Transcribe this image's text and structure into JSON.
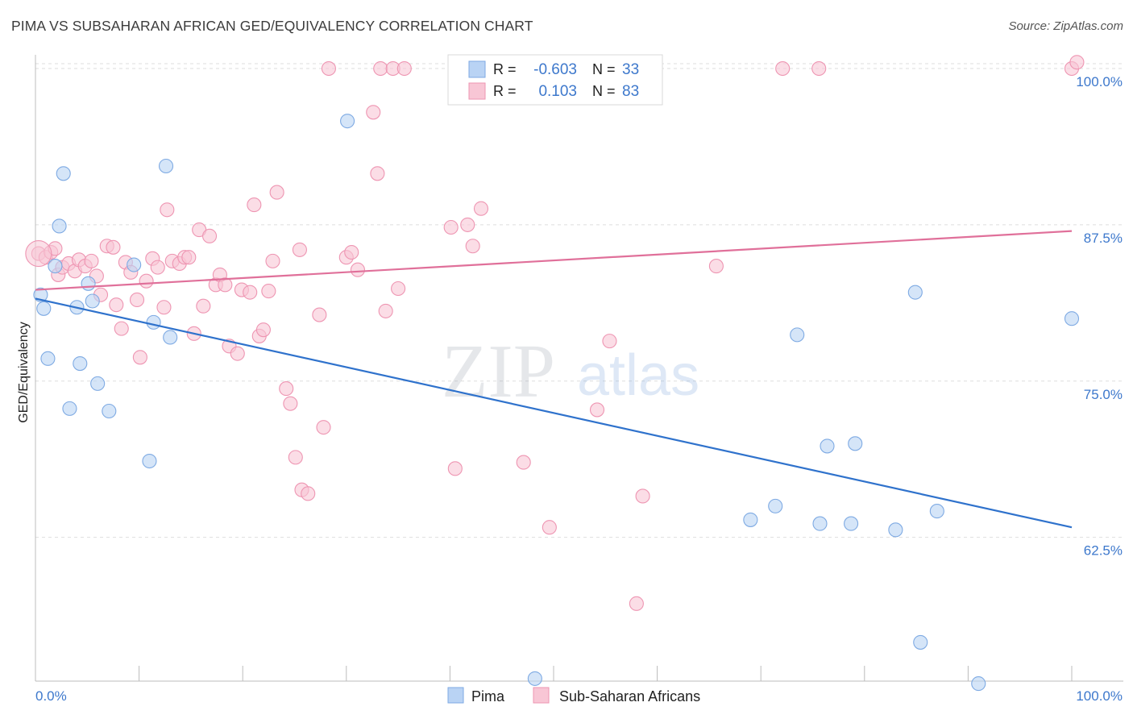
{
  "header": {
    "title": "PIMA VS SUBSAHARAN AFRICAN GED/EQUIVALENCY CORRELATION CHART",
    "source": "Source: ZipAtlas.com"
  },
  "watermark": {
    "zip": "ZIP",
    "atlas": "atlas"
  },
  "chart_data": {
    "type": "scatter",
    "ylabel": "GED/Equivalency",
    "xlim": [
      0,
      100
    ],
    "ylim": [
      51,
      102
    ],
    "x_tick_labels": [
      "0.0%",
      "100.0%"
    ],
    "y_ticks": [
      62.5,
      75.0,
      87.5,
      100.0
    ],
    "y_tick_labels": [
      "62.5%",
      "75.0%",
      "87.5%",
      "100.0%"
    ],
    "grid": "horizontal dashed",
    "legend_position": "top-center",
    "colors": {
      "pima_fill": "#b9d3f4",
      "pima_stroke": "#7eaae3",
      "pima_line": "#2f72cc",
      "ssa_fill": "#f8c6d5",
      "ssa_stroke": "#ee95b2",
      "ssa_line": "#e0709a"
    },
    "series": [
      {
        "name": "Pima",
        "r": "-0.603",
        "n": "33",
        "trend": [
          [
            0,
            81.6
          ],
          [
            100,
            63.3
          ]
        ],
        "points": [
          [
            0.5,
            81.9
          ],
          [
            0.8,
            80.8
          ],
          [
            1.2,
            76.8
          ],
          [
            1.9,
            84.2
          ],
          [
            2.3,
            87.4
          ],
          [
            2.7,
            91.6
          ],
          [
            3.3,
            72.8
          ],
          [
            4.0,
            80.9
          ],
          [
            4.3,
            76.4
          ],
          [
            5.1,
            82.8
          ],
          [
            5.5,
            81.4
          ],
          [
            6.0,
            74.8
          ],
          [
            7.1,
            72.6
          ],
          [
            9.5,
            84.3
          ],
          [
            11.0,
            68.6
          ],
          [
            11.4,
            79.7
          ],
          [
            12.6,
            92.2
          ],
          [
            13.0,
            78.5
          ],
          [
            30.1,
            95.8
          ],
          [
            48.2,
            51.2
          ],
          [
            69.0,
            63.9
          ],
          [
            71.4,
            65.0
          ],
          [
            73.5,
            78.7
          ],
          [
            75.7,
            63.6
          ],
          [
            76.4,
            69.8
          ],
          [
            78.7,
            63.6
          ],
          [
            79.1,
            70.0
          ],
          [
            83.0,
            63.1
          ],
          [
            84.9,
            82.1
          ],
          [
            85.4,
            54.1
          ],
          [
            87.0,
            64.6
          ],
          [
            91.0,
            50.8
          ],
          [
            100.0,
            80.0
          ]
        ]
      },
      {
        "name": "Sub-Saharan Africans",
        "r": "0.103",
        "n": "83",
        "trend": [
          [
            0,
            82.3
          ],
          [
            100,
            87.0
          ]
        ],
        "points": [
          [
            0.3,
            85.2
          ],
          [
            1.0,
            84.9
          ],
          [
            1.5,
            85.3
          ],
          [
            1.9,
            85.6
          ],
          [
            2.2,
            83.5
          ],
          [
            2.6,
            84.1
          ],
          [
            3.2,
            84.4
          ],
          [
            3.8,
            83.8
          ],
          [
            4.2,
            84.7
          ],
          [
            4.8,
            84.2
          ],
          [
            5.4,
            84.6
          ],
          [
            5.9,
            83.4
          ],
          [
            6.3,
            81.9
          ],
          [
            6.9,
            85.8
          ],
          [
            7.5,
            85.7
          ],
          [
            7.8,
            81.1
          ],
          [
            8.3,
            79.2
          ],
          [
            8.7,
            84.5
          ],
          [
            9.2,
            83.7
          ],
          [
            9.8,
            81.5
          ],
          [
            10.1,
            76.9
          ],
          [
            10.7,
            83.0
          ],
          [
            11.3,
            84.8
          ],
          [
            11.8,
            84.1
          ],
          [
            12.4,
            80.9
          ],
          [
            12.7,
            88.7
          ],
          [
            13.2,
            84.6
          ],
          [
            13.9,
            84.4
          ],
          [
            14.4,
            84.9
          ],
          [
            14.8,
            84.9
          ],
          [
            15.3,
            78.8
          ],
          [
            15.8,
            87.1
          ],
          [
            16.2,
            81.0
          ],
          [
            16.8,
            86.6
          ],
          [
            17.4,
            82.7
          ],
          [
            17.8,
            83.5
          ],
          [
            18.3,
            82.7
          ],
          [
            18.7,
            77.8
          ],
          [
            19.5,
            77.2
          ],
          [
            19.9,
            82.3
          ],
          [
            20.7,
            82.1
          ],
          [
            21.1,
            89.1
          ],
          [
            21.6,
            78.6
          ],
          [
            22.0,
            79.1
          ],
          [
            22.5,
            82.2
          ],
          [
            22.9,
            84.6
          ],
          [
            23.3,
            90.1
          ],
          [
            24.2,
            74.4
          ],
          [
            24.6,
            73.2
          ],
          [
            25.1,
            68.9
          ],
          [
            25.5,
            85.5
          ],
          [
            25.7,
            66.3
          ],
          [
            26.3,
            66.0
          ],
          [
            27.4,
            80.3
          ],
          [
            27.8,
            71.3
          ],
          [
            28.3,
            100.0
          ],
          [
            30.0,
            84.9
          ],
          [
            30.5,
            85.3
          ],
          [
            31.1,
            83.9
          ],
          [
            32.6,
            96.5
          ],
          [
            33.0,
            91.6
          ],
          [
            33.3,
            100.0
          ],
          [
            33.8,
            80.6
          ],
          [
            34.5,
            100.0
          ],
          [
            35.0,
            82.4
          ],
          [
            35.6,
            100.0
          ],
          [
            40.1,
            87.3
          ],
          [
            40.5,
            68.0
          ],
          [
            41.7,
            87.5
          ],
          [
            42.2,
            85.8
          ],
          [
            43.0,
            88.8
          ],
          [
            47.1,
            68.5
          ],
          [
            49.2,
            100.0
          ],
          [
            49.6,
            63.3
          ],
          [
            54.2,
            72.7
          ],
          [
            55.4,
            78.2
          ],
          [
            58.0,
            57.2
          ],
          [
            58.6,
            65.8
          ],
          [
            65.7,
            84.2
          ],
          [
            72.1,
            100.0
          ],
          [
            75.6,
            100.0
          ],
          [
            100.0,
            100.0
          ],
          [
            100.5,
            100.5
          ]
        ]
      }
    ]
  }
}
